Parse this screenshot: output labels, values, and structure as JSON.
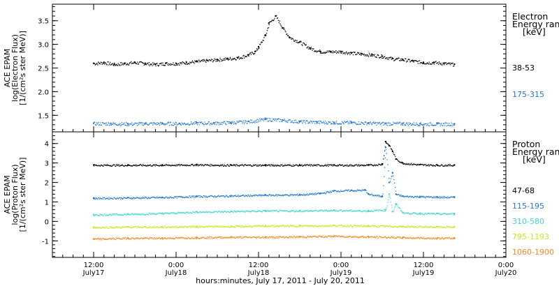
{
  "chart_data": [
    {
      "type": "scatter",
      "panel": "electron",
      "ylabel_lines": [
        "ACE EPAM",
        "log(Electron Flux)",
        "[1/(cm²s ster MeV)]"
      ],
      "ylim": [
        1.15,
        3.85
      ],
      "yticks": [
        "1.5",
        "2.0",
        "2.5",
        "3.0",
        "3.5"
      ],
      "legend_title": [
        "Electron",
        "Energy ranges",
        "[keV]"
      ],
      "legend_placement": "right",
      "series": [
        {
          "name": "38-53",
          "color": "#000000",
          "x": [
            0,
            3,
            6,
            9,
            12,
            15,
            18,
            21,
            24,
            27,
            30,
            33,
            36,
            39,
            42,
            45,
            47,
            48,
            50,
            51,
            53,
            55,
            57,
            60,
            63,
            66,
            69,
            72,
            75,
            78,
            81,
            84,
            87,
            90,
            93,
            96,
            99,
            102,
            105
          ],
          "y": [
            2.6,
            2.62,
            2.58,
            2.6,
            2.62,
            2.6,
            2.58,
            2.6,
            2.6,
            2.62,
            2.64,
            2.66,
            2.68,
            2.7,
            2.72,
            2.78,
            2.85,
            2.95,
            3.2,
            3.45,
            3.6,
            3.35,
            3.15,
            3.05,
            2.92,
            2.85,
            2.85,
            2.85,
            2.82,
            2.8,
            2.78,
            2.75,
            2.7,
            2.68,
            2.65,
            2.62,
            2.62,
            2.6,
            2.58
          ]
        },
        {
          "name": "175-315",
          "color": "#1f78d0",
          "x": [
            0,
            5,
            10,
            15,
            20,
            25,
            30,
            35,
            40,
            45,
            50,
            55,
            60,
            65,
            70,
            75,
            80,
            85,
            90,
            95,
            100,
            105
          ],
          "y": [
            1.33,
            1.33,
            1.32,
            1.33,
            1.33,
            1.33,
            1.34,
            1.34,
            1.35,
            1.37,
            1.42,
            1.4,
            1.37,
            1.36,
            1.35,
            1.35,
            1.34,
            1.33,
            1.33,
            1.32,
            1.32,
            1.32
          ]
        }
      ]
    },
    {
      "type": "scatter",
      "panel": "proton",
      "ylabel_lines": [
        "ACE EPAM",
        "log(Proton Flux)",
        "[1/(cm²s ster MeV)]"
      ],
      "ylim": [
        -1.85,
        4.6
      ],
      "yticks": [
        "-1",
        "0",
        "1",
        "2",
        "3",
        "4"
      ],
      "legend_title": [
        "Proton",
        "Energy ranges",
        "[keV]"
      ],
      "legend_placement": "right",
      "series": [
        {
          "name": "47-68",
          "color": "#000000",
          "x": [
            0,
            10,
            20,
            30,
            40,
            50,
            60,
            70,
            80,
            84,
            85,
            86,
            87,
            88,
            90,
            95,
            100,
            105
          ],
          "y": [
            2.9,
            2.9,
            2.9,
            2.92,
            2.9,
            2.9,
            2.9,
            2.9,
            2.9,
            2.95,
            4.1,
            3.9,
            3.6,
            3.2,
            3.0,
            2.92,
            2.9,
            2.9
          ]
        },
        {
          "name": "115-195",
          "color": "#1f78d0",
          "x": [
            0,
            10,
            20,
            30,
            40,
            50,
            60,
            66,
            70,
            75,
            79,
            80,
            84,
            85,
            86,
            87,
            88,
            90,
            95,
            100,
            105
          ],
          "y": [
            1.2,
            1.22,
            1.24,
            1.3,
            1.32,
            1.36,
            1.38,
            1.45,
            1.58,
            1.6,
            1.62,
            1.4,
            1.3,
            3.8,
            2.0,
            2.5,
            1.4,
            1.3,
            1.28,
            1.26,
            1.25
          ]
        },
        {
          "name": "310-580",
          "color": "#3fd6d2",
          "x": [
            0,
            10,
            20,
            30,
            40,
            50,
            60,
            70,
            80,
            85,
            86,
            87,
            88,
            90,
            95,
            100,
            105
          ],
          "y": [
            0.35,
            0.38,
            0.42,
            0.5,
            0.52,
            0.55,
            0.55,
            0.58,
            0.55,
            0.6,
            1.4,
            0.5,
            0.9,
            0.45,
            0.42,
            0.4,
            0.4
          ]
        },
        {
          "name": "795-1193",
          "color": "#c8e81a",
          "x": [
            0,
            10,
            20,
            30,
            40,
            50,
            60,
            70,
            80,
            90,
            100,
            105
          ],
          "y": [
            -0.3,
            -0.28,
            -0.27,
            -0.25,
            -0.25,
            -0.22,
            -0.22,
            -0.2,
            -0.22,
            -0.25,
            -0.27,
            -0.27
          ]
        },
        {
          "name": "1060-1900",
          "color": "#f08a20",
          "x": [
            0,
            10,
            20,
            30,
            40,
            50,
            60,
            70,
            80,
            90,
            100,
            105
          ],
          "y": [
            -0.9,
            -0.85,
            -0.85,
            -0.82,
            -0.8,
            -0.8,
            -0.78,
            -0.75,
            -0.78,
            -0.82,
            -0.85,
            -0.85
          ]
        }
      ]
    }
  ],
  "x_axis": {
    "xlim": [
      -12,
      120
    ],
    "xlabel": "hours:minutes, July 17, 2011 - July 20, 2011",
    "ticks": [
      {
        "x": 0,
        "time": "12:00",
        "date": "July17"
      },
      {
        "x": 24,
        "time": "0:00",
        "date": "July18"
      },
      {
        "x": 48,
        "time": "12:00",
        "date": "July18"
      },
      {
        "x": 72,
        "time": "0:00",
        "date": "July19"
      },
      {
        "x": 96,
        "time": "12:00",
        "date": "July19"
      },
      {
        "x": 120,
        "time": "0:00",
        "date": "July20"
      }
    ]
  },
  "grid": false
}
